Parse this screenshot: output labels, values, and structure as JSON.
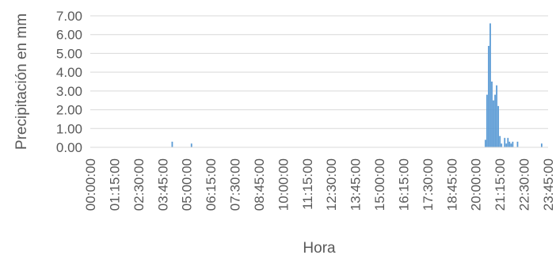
{
  "chart_data": {
    "type": "bar",
    "xlabel": "Hora",
    "ylabel": "Precipitación en mm",
    "ylim": [
      0,
      7
    ],
    "y_ticks": [
      "0.00",
      "1.00",
      "2.00",
      "3.00",
      "4.00",
      "5.00",
      "6.00",
      "7.00"
    ],
    "grid": true,
    "legend": "none",
    "x_tick_labels": [
      "00:00:00",
      "01:15:00",
      "02:30:00",
      "03:45:00",
      "05:00:00",
      "06:15:00",
      "07:30:00",
      "08:45:00",
      "10:00:00",
      "11:15:00",
      "12:30:00",
      "13:45:00",
      "15:00:00",
      "16:15:00",
      "17:30:00",
      "18:45:00",
      "20:00:00",
      "21:15:00",
      "22:30:00",
      "23:45:00"
    ],
    "x_domain": [
      "00:00:00",
      "23:45:00"
    ],
    "colors": {
      "bar": "#5b9bd5",
      "grid": "#d9d9d9",
      "text": "#595959"
    },
    "points": [
      {
        "x": "04:15:00",
        "y": 0.3
      },
      {
        "x": "05:15:00",
        "y": 0.2
      },
      {
        "x": "20:30:00",
        "y": 0.4
      },
      {
        "x": "20:35:00",
        "y": 2.8
      },
      {
        "x": "20:40:00",
        "y": 5.4
      },
      {
        "x": "20:45:00",
        "y": 6.6
      },
      {
        "x": "20:50:00",
        "y": 3.5
      },
      {
        "x": "20:55:00",
        "y": 2.5
      },
      {
        "x": "21:00:00",
        "y": 2.8
      },
      {
        "x": "21:05:00",
        "y": 3.3
      },
      {
        "x": "21:10:00",
        "y": 2.2
      },
      {
        "x": "21:15:00",
        "y": 0.6
      },
      {
        "x": "21:20:00",
        "y": 0.2
      },
      {
        "x": "21:30:00",
        "y": 0.5
      },
      {
        "x": "21:35:00",
        "y": 0.2
      },
      {
        "x": "21:40:00",
        "y": 0.5
      },
      {
        "x": "21:45:00",
        "y": 0.3
      },
      {
        "x": "21:50:00",
        "y": 0.2
      },
      {
        "x": "21:55:00",
        "y": 0.3
      },
      {
        "x": "22:10:00",
        "y": 0.3
      },
      {
        "x": "23:25:00",
        "y": 0.2
      }
    ]
  }
}
